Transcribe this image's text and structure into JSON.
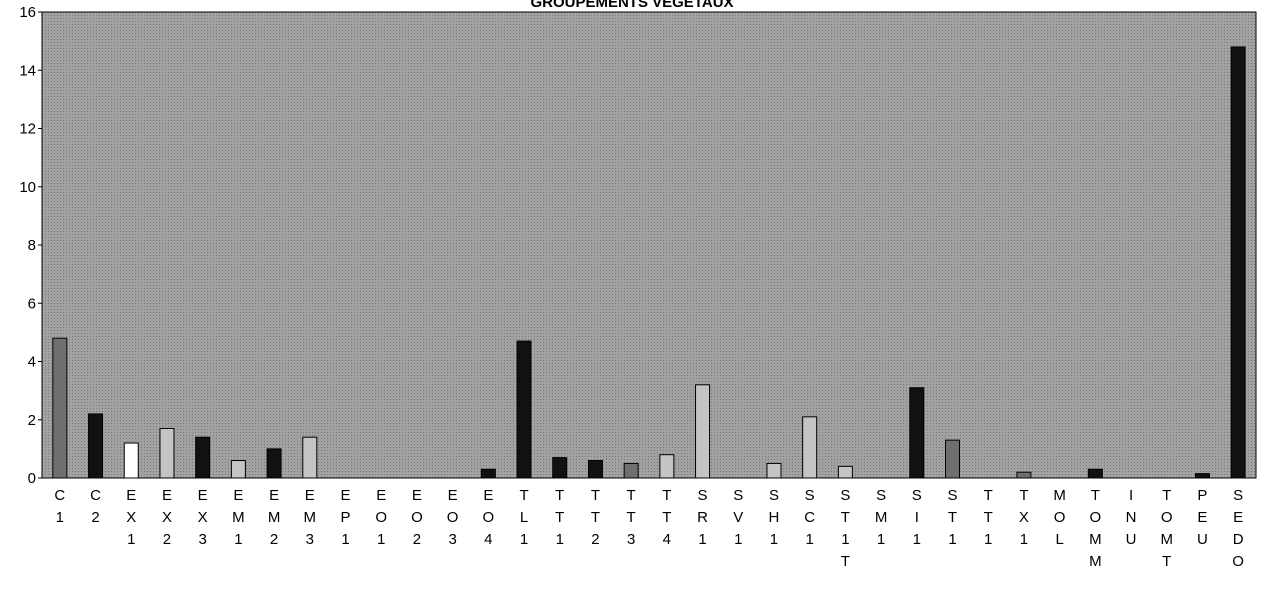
{
  "chart_data": {
    "type": "bar",
    "title": "GROUPEMENTS VEGETAUX",
    "xlabel": "",
    "ylabel": "",
    "ylim": [
      0,
      16
    ],
    "yticks": [
      "0",
      "2",
      "4",
      "6",
      "8",
      "10",
      "12",
      "14",
      "16"
    ],
    "grid": false,
    "legend": "none",
    "categories": [
      {
        "lines": [
          "C",
          "1"
        ],
        "value": 4.8,
        "style": "medium"
      },
      {
        "lines": [
          "C",
          "2"
        ],
        "value": 2.2,
        "style": "black"
      },
      {
        "lines": [
          "E",
          "X",
          "1"
        ],
        "value": 1.2,
        "style": "white"
      },
      {
        "lines": [
          "E",
          "X",
          "2"
        ],
        "value": 1.7,
        "style": "light"
      },
      {
        "lines": [
          "E",
          "X",
          "3"
        ],
        "value": 1.4,
        "style": "black"
      },
      {
        "lines": [
          "E",
          "M",
          "1"
        ],
        "value": 0.6,
        "style": "light"
      },
      {
        "lines": [
          "E",
          "M",
          "2"
        ],
        "value": 1.0,
        "style": "black"
      },
      {
        "lines": [
          "E",
          "M",
          "3"
        ],
        "value": 1.4,
        "style": "light"
      },
      {
        "lines": [
          "E",
          "P",
          "1"
        ],
        "value": 0,
        "style": "light"
      },
      {
        "lines": [
          "E",
          "O",
          "1"
        ],
        "value": 0,
        "style": "light"
      },
      {
        "lines": [
          "E",
          "O",
          "2"
        ],
        "value": 0,
        "style": "light"
      },
      {
        "lines": [
          "E",
          "O",
          "3"
        ],
        "value": 0,
        "style": "light"
      },
      {
        "lines": [
          "E",
          "O",
          "4"
        ],
        "value": 0.3,
        "style": "black"
      },
      {
        "lines": [
          "T",
          "L",
          "1"
        ],
        "value": 4.7,
        "style": "black"
      },
      {
        "lines": [
          "T",
          "T",
          "1"
        ],
        "value": 0.7,
        "style": "black"
      },
      {
        "lines": [
          "T",
          "T",
          "2"
        ],
        "value": 0.6,
        "style": "black"
      },
      {
        "lines": [
          "T",
          "T",
          "3"
        ],
        "value": 0.5,
        "style": "medium"
      },
      {
        "lines": [
          "T",
          "T",
          "4"
        ],
        "value": 0.8,
        "style": "light"
      },
      {
        "lines": [
          "S",
          "R",
          "1"
        ],
        "value": 3.2,
        "style": "light"
      },
      {
        "lines": [
          "S",
          "V",
          "1"
        ],
        "value": 0,
        "style": "light"
      },
      {
        "lines": [
          "S",
          "H",
          "1"
        ],
        "value": 0.5,
        "style": "light"
      },
      {
        "lines": [
          "S",
          "C",
          "1"
        ],
        "value": 2.1,
        "style": "light"
      },
      {
        "lines": [
          "S",
          "T",
          "1",
          "T"
        ],
        "value": 0.4,
        "style": "light"
      },
      {
        "lines": [
          "S",
          "M",
          "1"
        ],
        "value": 0,
        "style": "light"
      },
      {
        "lines": [
          "S",
          "I",
          "1"
        ],
        "value": 3.1,
        "style": "black"
      },
      {
        "lines": [
          "S",
          "T",
          "1"
        ],
        "value": 1.3,
        "style": "medium"
      },
      {
        "lines": [
          "T",
          "T",
          "1"
        ],
        "value": 0,
        "style": "light"
      },
      {
        "lines": [
          "T",
          "X",
          "1"
        ],
        "value": 0.2,
        "style": "medium"
      },
      {
        "lines": [
          "M",
          "O",
          "L"
        ],
        "value": 0,
        "style": "light"
      },
      {
        "lines": [
          "T",
          "O",
          "M",
          "M"
        ],
        "value": 0.3,
        "style": "black"
      },
      {
        "lines": [
          "I",
          "N",
          "U"
        ],
        "value": 0,
        "style": "light"
      },
      {
        "lines": [
          "T",
          "O",
          "M",
          "T"
        ],
        "value": 0,
        "style": "light"
      },
      {
        "lines": [
          "P",
          "E",
          "U"
        ],
        "value": 0.15,
        "style": "black"
      },
      {
        "lines": [
          "S",
          "E",
          "D",
          "O"
        ],
        "value": 14.8,
        "style": "black"
      }
    ],
    "colors": {
      "plot_bg": "#9a9a9a",
      "axis": "#000000",
      "black": "#111111",
      "medium": "#6f6f6f",
      "light": "#c4c4c4",
      "white": "#ffffff"
    }
  }
}
